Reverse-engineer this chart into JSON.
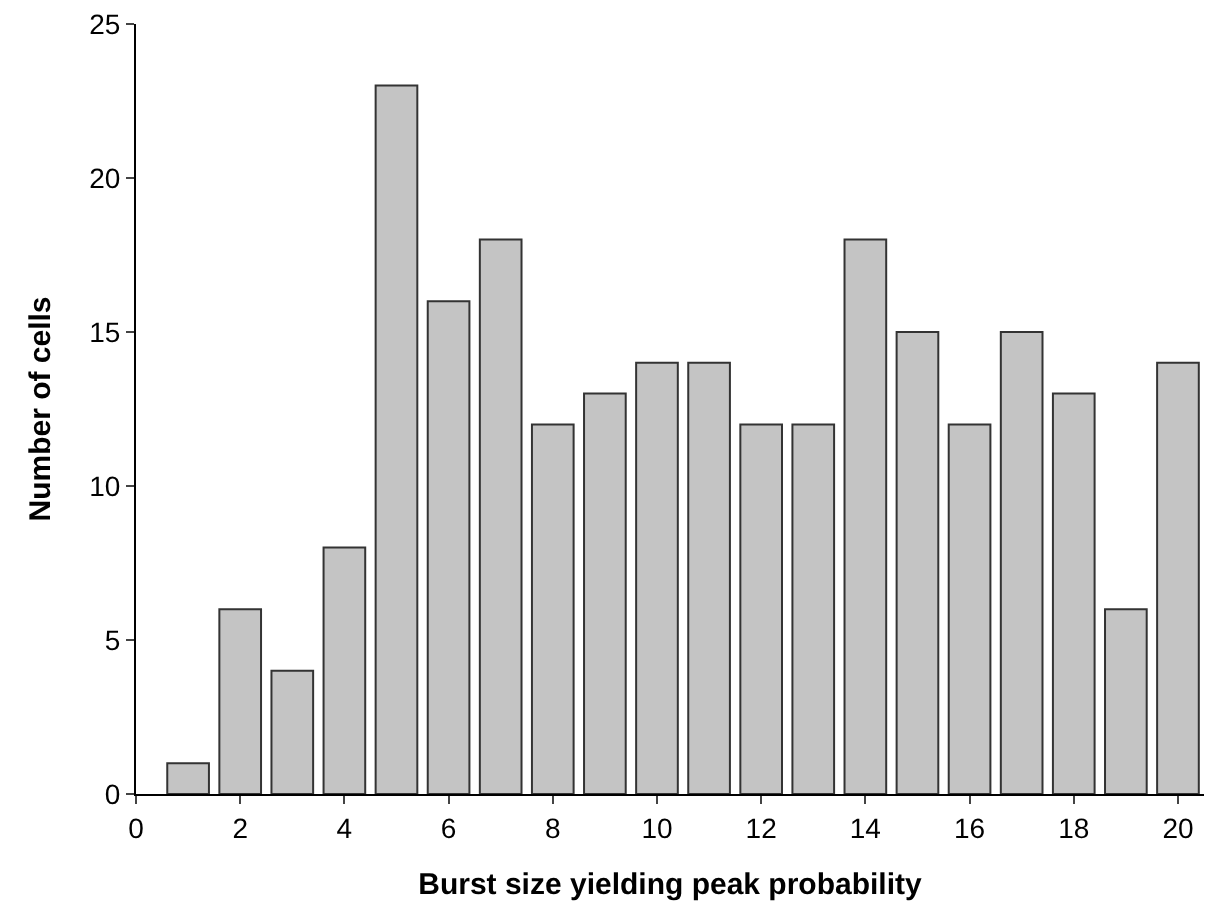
{
  "chart_data": {
    "type": "bar",
    "xlabel": "Burst size yielding peak probability",
    "ylabel": "Number of cells",
    "x": [
      1,
      2,
      3,
      4,
      5,
      6,
      7,
      8,
      9,
      10,
      11,
      12,
      13,
      14,
      15,
      16,
      17,
      18,
      19,
      20
    ],
    "values": [
      1,
      6,
      4,
      8,
      23,
      16,
      18,
      12,
      13,
      14,
      14,
      12,
      12,
      18,
      15,
      12,
      15,
      13,
      6,
      14
    ],
    "color": "#c4c4c4",
    "xlim": [
      0,
      20.5
    ],
    "xticks": [
      0,
      2,
      4,
      6,
      8,
      10,
      12,
      14,
      16,
      18,
      20
    ],
    "ylim": [
      0,
      25
    ],
    "yticks": [
      0,
      5,
      10,
      15,
      20,
      25
    ],
    "legend": false
  }
}
